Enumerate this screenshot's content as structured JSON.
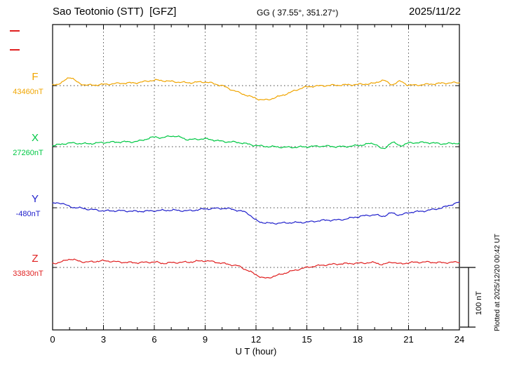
{
  "header": {
    "station": "Sao Teotonio (STT)  [GFZ]",
    "coords": "GG ( 37.55°, 351.27°)",
    "date": "2025/11/22"
  },
  "axis": {
    "xlabel": "U T (hour)"
  },
  "scalebar": {
    "label": "100 nT"
  },
  "plotted_note": "Plotted at 2025/12/20 00:42 UT",
  "chart_data": {
    "type": "line",
    "title": "Sao Teotonio (STT)  [GFZ]",
    "subtitle": "GG ( 37.55°, 351.27°)",
    "date": "2025/11/22",
    "xlabel": "U T (hour)",
    "xlim": [
      0,
      24
    ],
    "x_ticks": [
      0,
      3,
      6,
      9,
      12,
      15,
      18,
      21,
      24
    ],
    "grid": "dotted vertical lines every 3 hours; dotted horizontal line at each component baseline",
    "legend_position": "left margin, one colored label per trace",
    "scale_bar_nt": 100,
    "series": [
      {
        "name": "F",
        "baseline_label": "43460nT",
        "baseline_nt": 43460,
        "color": "#f0a500",
        "x": [
          0,
          0.5,
          1,
          1.5,
          2,
          3,
          4,
          5,
          6,
          7,
          8,
          9,
          10,
          10.5,
          11,
          12,
          12.5,
          13,
          14,
          14.5,
          15,
          16,
          17,
          18,
          19,
          19.5,
          20,
          20.5,
          21,
          22,
          23,
          24
        ],
        "offset_nt": [
          2,
          4,
          14,
          5,
          1,
          2,
          4,
          5,
          9,
          7,
          5,
          6,
          0,
          -6,
          -12,
          -21,
          -24,
          -21,
          -12,
          -6,
          -2,
          0,
          1,
          2,
          4,
          9,
          2,
          7,
          1,
          2,
          4,
          5
        ]
      },
      {
        "name": "X",
        "baseline_label": "27260nT",
        "baseline_nt": 27260,
        "color": "#00c844",
        "x": [
          0,
          1,
          2,
          3,
          4,
          5,
          6,
          6.5,
          7,
          7.5,
          8,
          9,
          10,
          11,
          12,
          13,
          14,
          15,
          16,
          17,
          18,
          19,
          19.5,
          20,
          20.5,
          21,
          22,
          23,
          24
        ],
        "offset_nt": [
          2,
          6,
          5,
          7,
          8,
          9,
          16,
          15,
          18,
          16,
          12,
          13,
          9,
          7,
          2,
          0,
          -1,
          0,
          1,
          0,
          2,
          5,
          -4,
          7,
          2,
          6,
          7,
          5,
          6
        ]
      },
      {
        "name": "Y",
        "baseline_label": "-480nT",
        "baseline_nt": -480,
        "color": "#2020cc",
        "x": [
          0,
          0.5,
          1,
          1.5,
          2,
          3,
          4,
          5,
          6,
          7,
          8,
          9,
          10,
          10.5,
          11,
          11.5,
          12,
          12.5,
          13,
          14,
          15,
          16,
          17,
          18,
          19,
          19.5,
          20,
          20.5,
          21,
          22,
          23,
          23.5,
          24
        ],
        "offset_nt": [
          7,
          8,
          2,
          0,
          -2,
          -5,
          -5,
          -6,
          -5,
          -4,
          -5,
          -2,
          -1,
          -2,
          -5,
          -9,
          -21,
          -25,
          -26,
          -25,
          -24,
          -21,
          -20,
          -15,
          -12,
          -14,
          -9,
          -12,
          -8,
          -5,
          0,
          5,
          9
        ]
      },
      {
        "name": "Z",
        "baseline_label": "33830nT",
        "baseline_nt": 33830,
        "color": "#e02020",
        "x": [
          0,
          0.5,
          1,
          1.5,
          2,
          3,
          4,
          5,
          6,
          6.5,
          7,
          8,
          9,
          10,
          11,
          11.5,
          12,
          12.5,
          13,
          14,
          15,
          16,
          17,
          18,
          19,
          19.5,
          20,
          20.5,
          21,
          22,
          23,
          24
        ],
        "offset_nt": [
          7,
          9,
          14,
          11,
          9,
          11,
          9,
          8,
          9,
          7,
          8,
          9,
          11,
          7,
          2,
          -5,
          -12,
          -18,
          -15,
          -7,
          0,
          4,
          6,
          7,
          8,
          5,
          9,
          6,
          8,
          9,
          8,
          9
        ]
      }
    ]
  }
}
